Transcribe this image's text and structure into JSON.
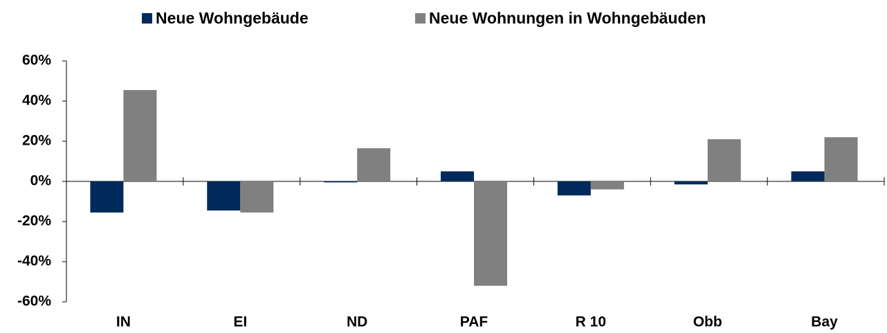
{
  "chart_data": {
    "type": "bar",
    "categories": [
      "IN",
      "EI",
      "ND",
      "PAF",
      "R 10",
      "Obb",
      "Bay"
    ],
    "series": [
      {
        "name": "Neue Wohngebäude",
        "color": "#002a5c",
        "values": [
          -15.5,
          -14.5,
          -0.5,
          5,
          -7,
          -1.5,
          5
        ]
      },
      {
        "name": "Neue Wohnungen in Wohngebäuden",
        "color": "#808080",
        "values": [
          45.5,
          -15.5,
          16.5,
          -52,
          -4,
          21,
          22
        ]
      }
    ],
    "ylim": [
      -60,
      60
    ],
    "yticks": [
      {
        "value": 60,
        "label": "60%"
      },
      {
        "value": 40,
        "label": "40%"
      },
      {
        "value": 20,
        "label": "20%"
      },
      {
        "value": 0,
        "label": "0%"
      },
      {
        "value": -20,
        "label": "-20%"
      },
      {
        "value": -40,
        "label": "-40%"
      },
      {
        "value": -60,
        "label": "-60%"
      }
    ],
    "legend": "top"
  }
}
